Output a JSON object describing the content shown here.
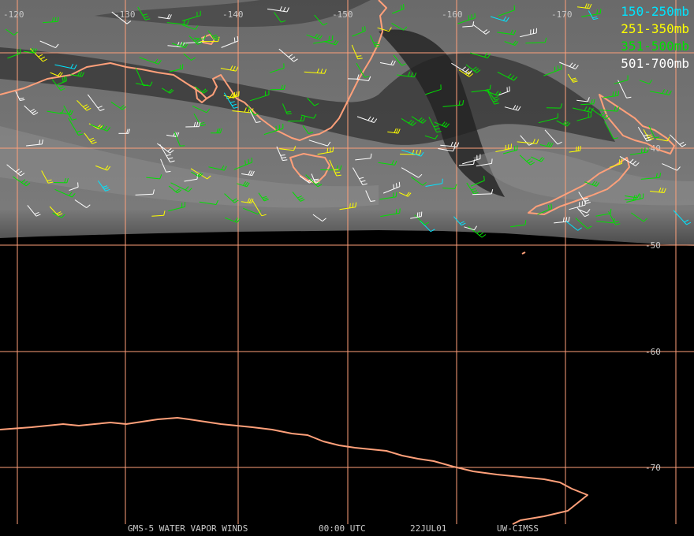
{
  "legend": {
    "items": [
      {
        "label": "150-250mb",
        "color": "#00e5ff"
      },
      {
        "label": "251-350mb",
        "color": "#ffff00"
      },
      {
        "label": "351-500mb",
        "color": "#00e000"
      },
      {
        "label": "501-700mb",
        "color": "#ffffff"
      }
    ]
  },
  "footer": {
    "product": "GMS-5 WATER VAPOR WINDS",
    "time": "00:00 UTC",
    "date": "22JUL01",
    "source": "UW-CIMSS"
  },
  "grid": {
    "longitudes": [
      "-120",
      "-130",
      "-140",
      "-150",
      "-160",
      "-170"
    ],
    "latitudes": [
      "-40",
      "-50",
      "-60",
      "-70"
    ],
    "color": "#ffa07a"
  },
  "colors": {
    "coast": "#ffa07a",
    "background": "#000000",
    "imagery": "#5a5a5a"
  }
}
